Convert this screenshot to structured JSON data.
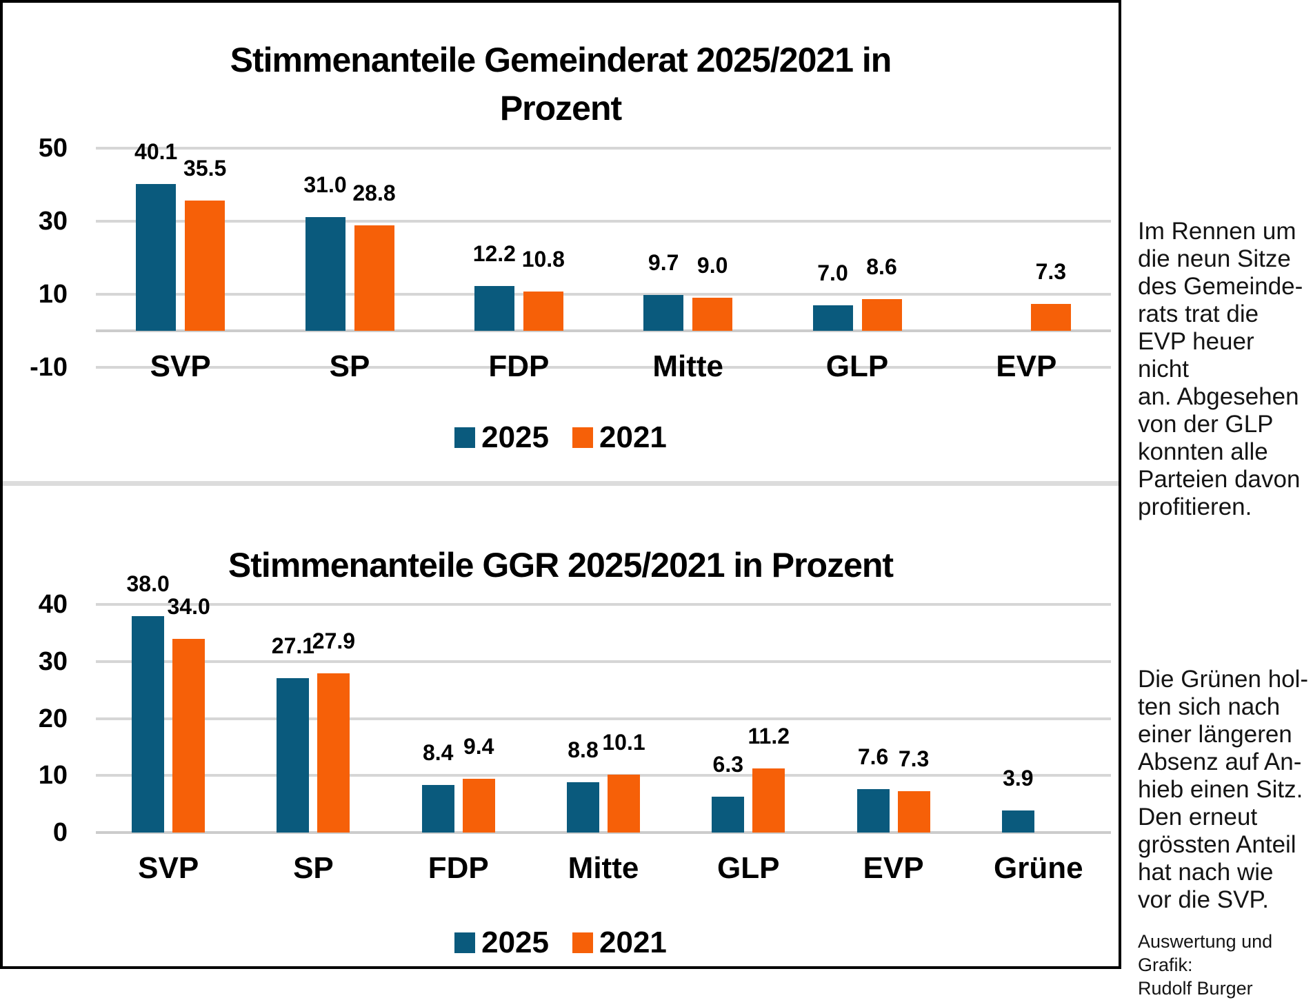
{
  "chart_data": [
    {
      "type": "bar",
      "title": "Stimmenanteile Gemeinderat 2025/2021 in Prozent",
      "title_wrap": "Stimmenanteile Gemeinderat 2025/2021 in\nProzent",
      "categories": [
        "SVP",
        "SP",
        "FDP",
        "Mitte",
        "GLP",
        "EVP"
      ],
      "series": [
        {
          "name": "2025",
          "color": "#0a5a7d",
          "values": [
            40.1,
            31.0,
            12.2,
            9.7,
            7.0,
            null
          ]
        },
        {
          "name": "2021",
          "color": "#f66008",
          "values": [
            35.5,
            28.8,
            10.8,
            9.0,
            8.6,
            7.3
          ]
        }
      ],
      "xlabel": "",
      "ylabel": "",
      "yticks": [
        50,
        30,
        10,
        -10
      ],
      "ylim": [
        -10,
        55
      ],
      "grid": true,
      "legend_position": "bottom"
    },
    {
      "type": "bar",
      "title": "Stimmenanteile GGR 2025/2021 in Prozent",
      "title_wrap": "Stimmenanteile GGR 2025/2021 in Prozent",
      "categories": [
        "SVP",
        "SP",
        "FDP",
        "Mitte",
        "GLP",
        "EVP",
        "Grüne"
      ],
      "series": [
        {
          "name": "2025",
          "color": "#0a5a7d",
          "values": [
            38.0,
            27.1,
            8.4,
            8.8,
            6.3,
            7.6,
            3.9
          ]
        },
        {
          "name": "2021",
          "color": "#f66008",
          "values": [
            34.0,
            27.9,
            9.4,
            10.1,
            11.2,
            7.3,
            null
          ]
        }
      ],
      "xlabel": "",
      "ylabel": "",
      "yticks": [
        40,
        30,
        20,
        10,
        0
      ],
      "ylim": [
        0,
        45
      ],
      "grid": true,
      "legend_position": "bottom"
    }
  ],
  "side_notes": {
    "top": "Im Rennen um\ndie neun Sitze\ndes Gemeinde-\nrats trat die\nEVP heuer nicht\nan. Abgesehen\nvon der GLP\nkonnten alle\nParteien davon\nprofitieren.",
    "bottom": "Die Grünen hol-\nten sich nach\neiner längeren\nAbsenz auf An-\nhieb einen Sitz.\nDen erneut\ngrössten Anteil\nhat nach wie\nvor die SVP.",
    "credit": "Auswertung und Grafik:\nRudolf Burger"
  },
  "colors": {
    "series_2025": "#0a5a7d",
    "series_2021": "#f66008",
    "gridline": "#d6d6d6",
    "zero_axis": "#cccccc",
    "divider": "#dcdcdc",
    "frame": "#000000"
  }
}
